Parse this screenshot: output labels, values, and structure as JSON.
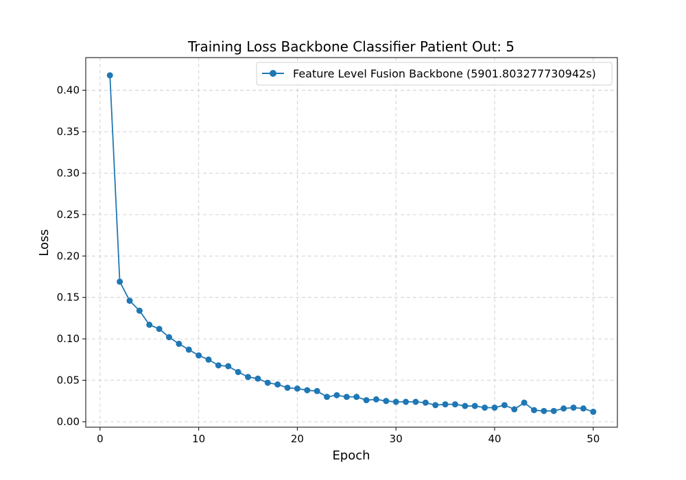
{
  "chart_data": {
    "type": "line",
    "title": "Training Loss Backbone Classifier Patient Out: 5",
    "xlabel": "Epoch",
    "ylabel": "Loss",
    "xlim": [
      -1.45,
      52.45
    ],
    "ylim": [
      -0.0066,
      0.4394
    ],
    "xticks": [
      0,
      10,
      20,
      30,
      40,
      50
    ],
    "yticks": [
      0.0,
      0.05,
      0.1,
      0.15,
      0.2,
      0.25,
      0.3,
      0.35,
      0.4
    ],
    "ytick_labels": [
      "0.00",
      "0.05",
      "0.10",
      "0.15",
      "0.20",
      "0.25",
      "0.30",
      "0.35",
      "0.40"
    ],
    "grid": true,
    "legend_position": "top-right",
    "series": [
      {
        "name": "Feature Level Fusion Backbone (5901.803277730942s)",
        "color": "#1f77b4",
        "marker": "circle",
        "x": [
          1,
          2,
          3,
          4,
          5,
          6,
          7,
          8,
          9,
          10,
          11,
          12,
          13,
          14,
          15,
          16,
          17,
          18,
          19,
          20,
          21,
          22,
          23,
          24,
          25,
          26,
          27,
          28,
          29,
          30,
          31,
          32,
          33,
          34,
          35,
          36,
          37,
          38,
          39,
          40,
          41,
          42,
          43,
          44,
          45,
          46,
          47,
          48,
          49,
          50
        ],
        "values": [
          0.418,
          0.169,
          0.146,
          0.134,
          0.117,
          0.112,
          0.102,
          0.094,
          0.087,
          0.08,
          0.075,
          0.068,
          0.067,
          0.06,
          0.054,
          0.052,
          0.047,
          0.045,
          0.041,
          0.04,
          0.038,
          0.037,
          0.03,
          0.032,
          0.03,
          0.03,
          0.026,
          0.027,
          0.025,
          0.024,
          0.024,
          0.024,
          0.023,
          0.02,
          0.021,
          0.021,
          0.019,
          0.019,
          0.017,
          0.017,
          0.02,
          0.015,
          0.023,
          0.014,
          0.013,
          0.013,
          0.016,
          0.017,
          0.016,
          0.012
        ]
      }
    ]
  }
}
